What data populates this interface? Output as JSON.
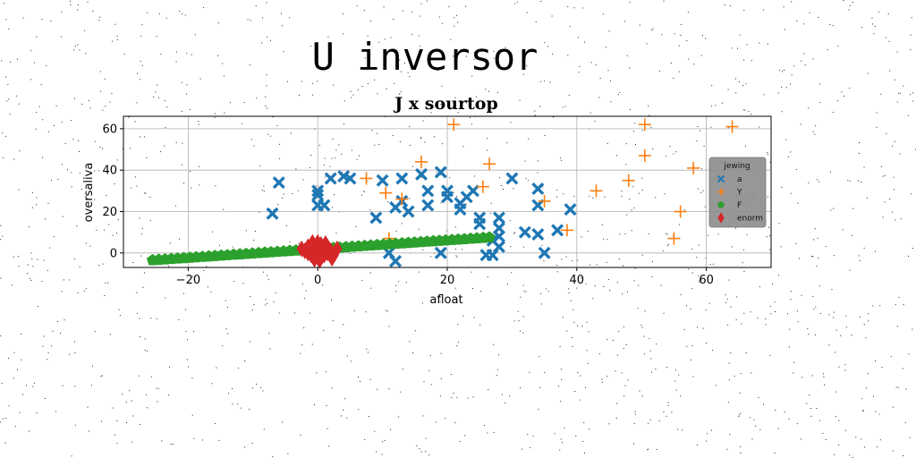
{
  "suptitle": "U inversor",
  "chart_data": {
    "type": "scatter",
    "title": "J x sourtop",
    "xlabel": "afloat",
    "ylabel": "oversaliva",
    "xlim": [
      -30,
      70
    ],
    "ylim": [
      -7,
      66
    ],
    "xticks": [
      -20,
      0,
      20,
      40,
      60
    ],
    "yticks": [
      0,
      20,
      40,
      60
    ],
    "grid": true,
    "legend": {
      "title": "jewing",
      "placement": "center-right"
    },
    "series": [
      {
        "name": "a",
        "marker": "X",
        "color": "#1f77b4",
        "points": [
          [
            -7,
            19
          ],
          [
            -6,
            34
          ],
          [
            0,
            23
          ],
          [
            0,
            28
          ],
          [
            0,
            30
          ],
          [
            1,
            23
          ],
          [
            2,
            36
          ],
          [
            4,
            37
          ],
          [
            5,
            36
          ],
          [
            9,
            17
          ],
          [
            10,
            35
          ],
          [
            11,
            0
          ],
          [
            12,
            22
          ],
          [
            13,
            36
          ],
          [
            13,
            25
          ],
          [
            14,
            20
          ],
          [
            12,
            -4
          ],
          [
            16,
            38
          ],
          [
            17,
            30
          ],
          [
            17,
            23
          ],
          [
            19,
            39
          ],
          [
            20,
            30
          ],
          [
            20,
            27
          ],
          [
            19,
            0
          ],
          [
            22,
            21
          ],
          [
            22,
            24
          ],
          [
            23,
            27
          ],
          [
            24,
            30
          ],
          [
            25,
            17
          ],
          [
            25,
            14
          ],
          [
            26,
            -1
          ],
          [
            27,
            -1
          ],
          [
            27,
            6
          ],
          [
            28,
            8
          ],
          [
            28,
            3
          ],
          [
            28,
            12
          ],
          [
            28,
            17
          ],
          [
            30,
            36
          ],
          [
            32,
            10
          ],
          [
            34,
            31
          ],
          [
            34,
            23
          ],
          [
            34,
            9
          ],
          [
            35,
            0
          ],
          [
            37,
            11
          ],
          [
            39,
            21
          ]
        ]
      },
      {
        "name": "Y",
        "marker": "+",
        "color": "#ff7f0e",
        "points": [
          [
            7.5,
            36
          ],
          [
            10.5,
            29
          ],
          [
            11,
            7
          ],
          [
            13,
            26
          ],
          [
            16,
            44
          ],
          [
            21,
            62
          ],
          [
            25.5,
            32
          ],
          [
            26.5,
            43
          ],
          [
            35,
            25
          ],
          [
            38.5,
            11
          ],
          [
            43,
            30
          ],
          [
            48,
            35
          ],
          [
            50.5,
            47
          ],
          [
            50.5,
            62
          ],
          [
            55,
            7
          ],
          [
            56,
            20
          ],
          [
            58,
            41
          ],
          [
            64,
            61
          ]
        ]
      },
      {
        "name": "F",
        "marker": "pentagon",
        "color": "#2ca02c",
        "line": {
          "x_from": -25.5,
          "x_to": 26.5,
          "y_from": -3.5,
          "y_to": 7.5,
          "count": 55
        }
      },
      {
        "name": "enorm",
        "marker": "diamond",
        "color": "#d62728",
        "points": [
          [
            -2,
            1
          ],
          [
            -1.5,
            3
          ],
          [
            -1,
            -1
          ],
          [
            -1,
            4
          ],
          [
            -0.5,
            2
          ],
          [
            -0.5,
            -3
          ],
          [
            0,
            0
          ],
          [
            0,
            3
          ],
          [
            0,
            5
          ],
          [
            0,
            -2
          ],
          [
            0.5,
            1
          ],
          [
            0.5,
            4
          ],
          [
            1,
            -1
          ],
          [
            1,
            2
          ],
          [
            1.5,
            0
          ],
          [
            1.5,
            3
          ],
          [
            2,
            1
          ],
          [
            2.5,
            -1
          ],
          [
            3,
            2
          ],
          [
            -2.5,
            2
          ],
          [
            -1.5,
            0
          ],
          [
            0.3,
            -3.5
          ],
          [
            1.2,
            4.5
          ],
          [
            -0.8,
            5
          ],
          [
            2.2,
            -2.5
          ]
        ]
      }
    ]
  }
}
